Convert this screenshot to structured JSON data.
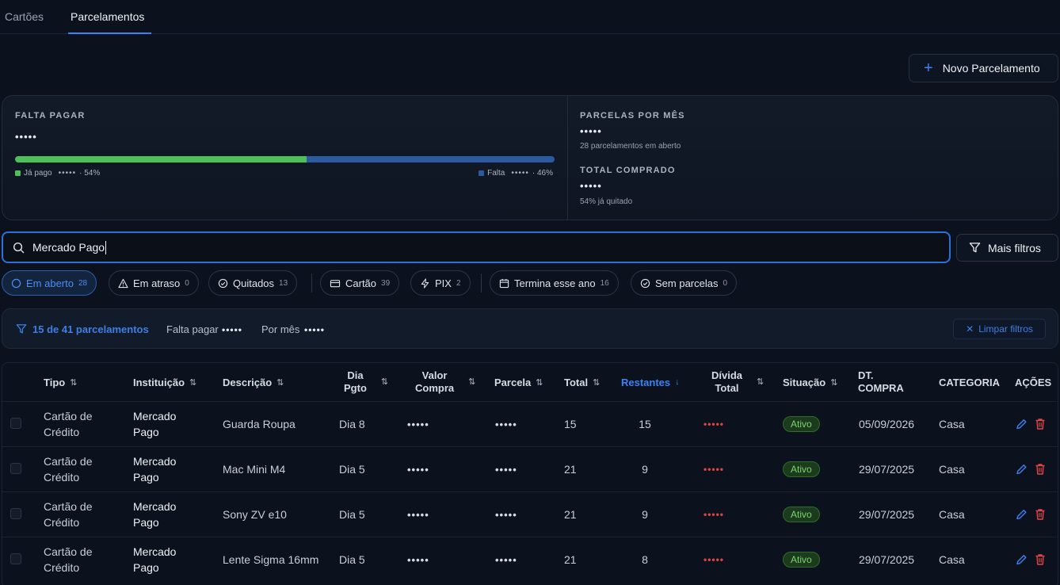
{
  "tabs": [
    {
      "label": "Cartões"
    },
    {
      "label": "Parcelamentos"
    }
  ],
  "new_button": {
    "label": "Novo Parcelamento"
  },
  "summary": {
    "falta_pagar": {
      "label": "FALTA PAGAR",
      "value": "•••••"
    },
    "progress": {
      "paid_fraction": 0.54,
      "paid_label": "Já pago",
      "paid_value": "•••••",
      "paid_pct": "· 54%",
      "due_label": "Falta",
      "due_value": "•••••",
      "due_pct": "· 46%"
    },
    "parcelas_mes": {
      "label": "PARCELAS POR MÊS",
      "value": "•••••",
      "sub": "28 parcelamentos em aberto"
    },
    "total_comprado": {
      "label": "TOTAL COMPRADO",
      "value": "•••••",
      "sub": "54% já quitado"
    }
  },
  "search": {
    "value": "Mercado Pago"
  },
  "more_filters": {
    "label": "Mais filtros"
  },
  "chips": [
    {
      "label": "Em aberto",
      "count": "28"
    },
    {
      "label": "Em atraso",
      "count": "0"
    },
    {
      "label": "Quitados",
      "count": "13"
    },
    {
      "label": "Cartão",
      "count": "39"
    },
    {
      "label": "PIX",
      "count": "2"
    },
    {
      "label": "Termina esse ano",
      "count": "16"
    },
    {
      "label": "Sem parcelas",
      "count": "0"
    }
  ],
  "filter_info": {
    "count_label": "15 de 41 parcelamentos",
    "falta_label": "Falta pagar",
    "falta_value": "•••••",
    "mes_label": "Por mês",
    "mes_value": "•••••",
    "clear_label": "Limpar filtros"
  },
  "table": {
    "headers": {
      "tipo": "Tipo",
      "instituicao": "Instituição",
      "descricao": "Descrição",
      "dia_pgto_1": "Dia",
      "dia_pgto_2": "Pgto",
      "valor_compra_1": "Valor",
      "valor_compra_2": "Compra",
      "parcela": "Parcela",
      "total": "Total",
      "restantes": "Restantes",
      "divida_1": "Dívida",
      "divida_2": "Total",
      "situacao": "Situação",
      "dt_compra_1": "DT.",
      "dt_compra_2": "COMPRA",
      "categoria": "CATEGORIA",
      "acoes": "AÇÕES"
    },
    "sort_icon": "⇅",
    "sort_desc_icon": "↓",
    "rows": [
      {
        "tipo_1": "Cartão de",
        "tipo_2": "Crédito",
        "inst_1": "Mercado",
        "inst_2": "Pago",
        "descricao": "Guarda Roupa",
        "dia": "Dia 8",
        "valor": "•••••",
        "parcela": "•••••",
        "total": "15",
        "restantes": "15",
        "divida": "•••••",
        "situacao": "Ativo",
        "dt_compra": "05/09/2026",
        "categoria": "Casa"
      },
      {
        "tipo_1": "Cartão de",
        "tipo_2": "Crédito",
        "inst_1": "Mercado",
        "inst_2": "Pago",
        "descricao": "Mac Mini M4",
        "dia": "Dia 5",
        "valor": "•••••",
        "parcela": "•••••",
        "total": "21",
        "restantes": "9",
        "divida": "•••••",
        "situacao": "Ativo",
        "dt_compra": "29/07/2025",
        "categoria": "Casa"
      },
      {
        "tipo_1": "Cartão de",
        "tipo_2": "Crédito",
        "inst_1": "Mercado",
        "inst_2": "Pago",
        "descricao": "Sony ZV e10",
        "dia": "Dia 5",
        "valor": "•••••",
        "parcela": "•••••",
        "total": "21",
        "restantes": "9",
        "divida": "•••••",
        "situacao": "Ativo",
        "dt_compra": "29/07/2025",
        "categoria": "Casa"
      },
      {
        "tipo_1": "Cartão de",
        "tipo_2": "Crédito",
        "inst_1": "Mercado",
        "inst_2": "Pago",
        "descricao": "Lente Sigma 16mm",
        "dia": "Dia 5",
        "valor": "•••••",
        "parcela": "•••••",
        "total": "21",
        "restantes": "8",
        "divida": "•••••",
        "situacao": "Ativo",
        "dt_compra": "29/07/2025",
        "categoria": "Casa"
      }
    ]
  },
  "colors": {
    "accent": "#3b82f6",
    "paid": "#4cc15a",
    "due": "#2b5aa0",
    "danger": "#e04545",
    "active_badge": "#7bd370"
  }
}
